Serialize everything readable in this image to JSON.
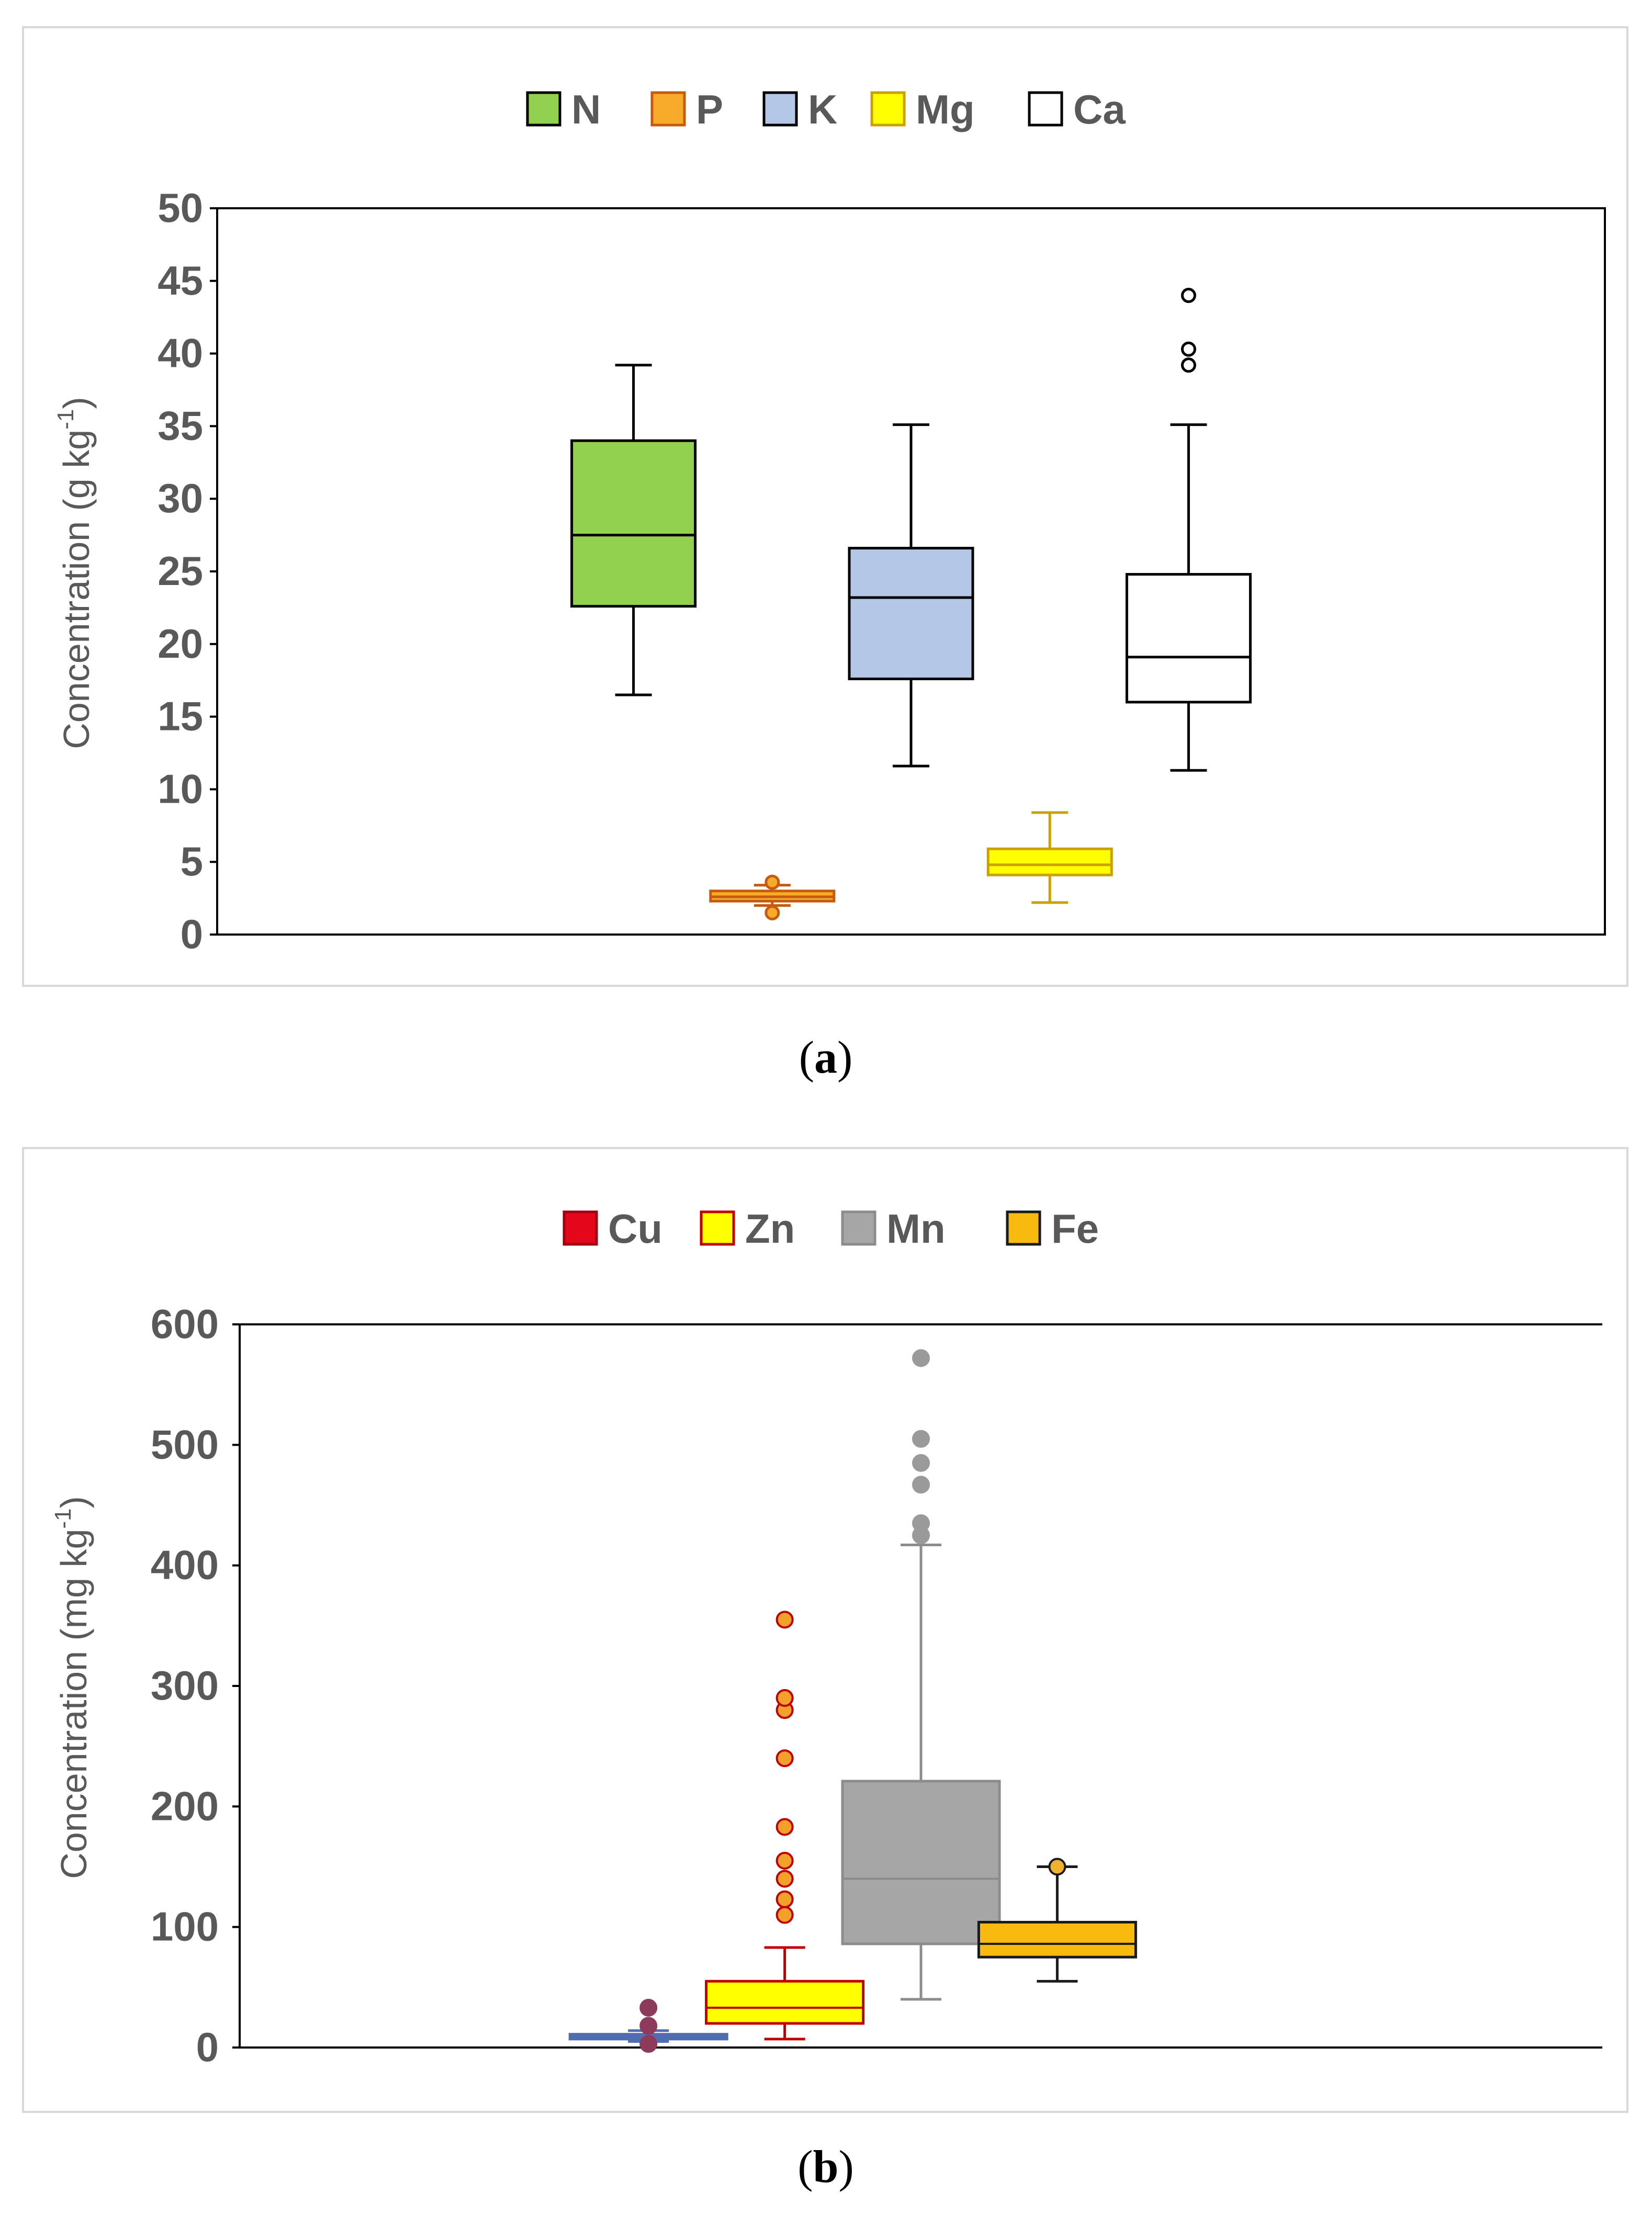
{
  "chart_data": [
    {
      "id": "a",
      "type": "boxplot",
      "caption": {
        "open": "(",
        "letter": "a",
        "close": ")"
      },
      "ylabel": {
        "prefix": "Concentration (g kg",
        "sup": "-1",
        "suffix": ")"
      },
      "ylim": [
        0,
        50
      ],
      "yticks": [
        "0",
        "5",
        "10",
        "15",
        "20",
        "25",
        "30",
        "35",
        "40",
        "45",
        "50"
      ],
      "xlim": [
        0,
        10
      ],
      "grid": false,
      "legend_position": "top-center",
      "series": [
        {
          "name": "N",
          "fill": "#92d050",
          "stroke": "#000000",
          "x": 3,
          "min": 16.5,
          "q1": 22.6,
          "median": 27.5,
          "q3": 34.0,
          "max": 39.2,
          "outliers": []
        },
        {
          "name": "P",
          "fill": "#f8ab2a",
          "stroke": "#c55a11",
          "x": 4,
          "min": 2.0,
          "q1": 2.3,
          "median": 2.6,
          "q3": 3.0,
          "max": 3.4,
          "outliers": [
            1.5,
            3.6
          ]
        },
        {
          "name": "K",
          "fill": "#b4c7e7",
          "stroke": "#000000",
          "x": 5,
          "min": 11.6,
          "q1": 17.6,
          "median": 23.2,
          "q3": 26.6,
          "max": 35.1,
          "outliers": []
        },
        {
          "name": "Mg",
          "fill": "#ffff00",
          "stroke": "#c9a100",
          "x": 6,
          "min": 2.2,
          "q1": 4.1,
          "median": 4.8,
          "q3": 5.9,
          "max": 8.4,
          "outliers": []
        },
        {
          "name": "Ca",
          "fill": "#ffffff",
          "stroke": "#000000",
          "x": 7,
          "min": 11.3,
          "q1": 16.0,
          "median": 19.1,
          "q3": 24.8,
          "max": 35.1,
          "outliers": [
            39.2,
            40.3,
            44.0
          ]
        }
      ]
    },
    {
      "id": "b",
      "type": "boxplot",
      "caption": {
        "open": "(",
        "letter": "b",
        "close": ")"
      },
      "ylabel": {
        "prefix": "Concentration (mg kg",
        "sup": "-1",
        "suffix": ")"
      },
      "ylim": [
        0,
        600
      ],
      "yticks": [
        "0",
        "100",
        "200",
        "300",
        "400",
        "500",
        "600"
      ],
      "xlim": [
        0,
        10
      ],
      "grid": false,
      "legend_position": "top-center",
      "series": [
        {
          "name": "Cu",
          "fill": "#e4061a",
          "stroke": "#4f6db0",
          "point_fill": "#8e3a5c",
          "x": 3,
          "min": 5,
          "q1": 7,
          "median": 9,
          "q3": 11,
          "max": 14,
          "outliers": [
            3,
            18,
            33
          ]
        },
        {
          "name": "Zn",
          "fill": "#ffff00",
          "stroke": "#c00000",
          "point_fill": "#f2a12a",
          "x": 4,
          "min": 7,
          "q1": 20,
          "median": 33,
          "q3": 55,
          "max": 83,
          "outliers": [
            110,
            123,
            140,
            155,
            183,
            240,
            280,
            290,
            355
          ]
        },
        {
          "name": "Mn",
          "fill": "#a6a6a6",
          "stroke": "#8c8c8c",
          "point_fill": "#9a9a9a",
          "x": 5,
          "min": 40,
          "q1": 86,
          "median": 140,
          "q3": 221,
          "max": 417,
          "outliers": [
            425,
            435,
            467,
            485,
            505,
            572
          ]
        },
        {
          "name": "Fe",
          "fill": "#f8ba0f",
          "stroke": "#1a1a1a",
          "point_fill": "#f0b030",
          "x": 6,
          "min": 55,
          "q1": 75,
          "median": 86,
          "q3": 104,
          "max": 150,
          "outliers": [
            150
          ]
        }
      ]
    }
  ]
}
